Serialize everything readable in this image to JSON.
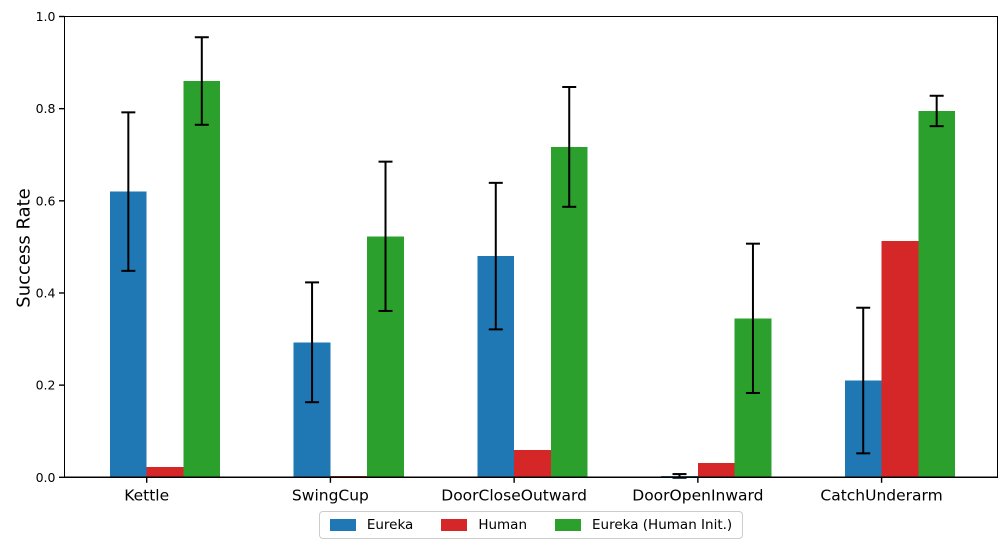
{
  "chart_data": {
    "type": "bar",
    "title": "",
    "xlabel": "",
    "ylabel": "Success Rate",
    "ylim": [
      0.0,
      1.0
    ],
    "grid": false,
    "legend_position": "lower center, outside axes",
    "axes_color": "#000000",
    "error_bar_color": "#000000",
    "ytick_values": [
      0.0,
      0.2,
      0.4,
      0.6,
      0.8,
      1.0
    ],
    "ytick_labels": [
      "0.0",
      "0.2",
      "0.4",
      "0.6",
      "0.8",
      "1.0"
    ],
    "categories": [
      "Kettle",
      "SwingCup",
      "DoorCloseOutward",
      "DoorOpenInward",
      "CatchUnderarm"
    ],
    "series": [
      {
        "name": "Eureka",
        "color": "#1f77b4",
        "values": [
          0.62,
          0.293,
          0.48,
          0.003,
          0.21
        ],
        "errors": [
          0.172,
          0.13,
          0.159,
          0.004,
          0.158
        ]
      },
      {
        "name": "Human",
        "color": "#d62728",
        "values": [
          0.022,
          0.003,
          0.059,
          0.031,
          0.513
        ],
        "errors": [
          0,
          0,
          0,
          0,
          0
        ]
      },
      {
        "name": "Eureka (Human Init.)",
        "color": "#2ca02c",
        "values": [
          0.86,
          0.523,
          0.717,
          0.345,
          0.795
        ],
        "errors": [
          0.095,
          0.162,
          0.13,
          0.162,
          0.033
        ]
      }
    ]
  }
}
